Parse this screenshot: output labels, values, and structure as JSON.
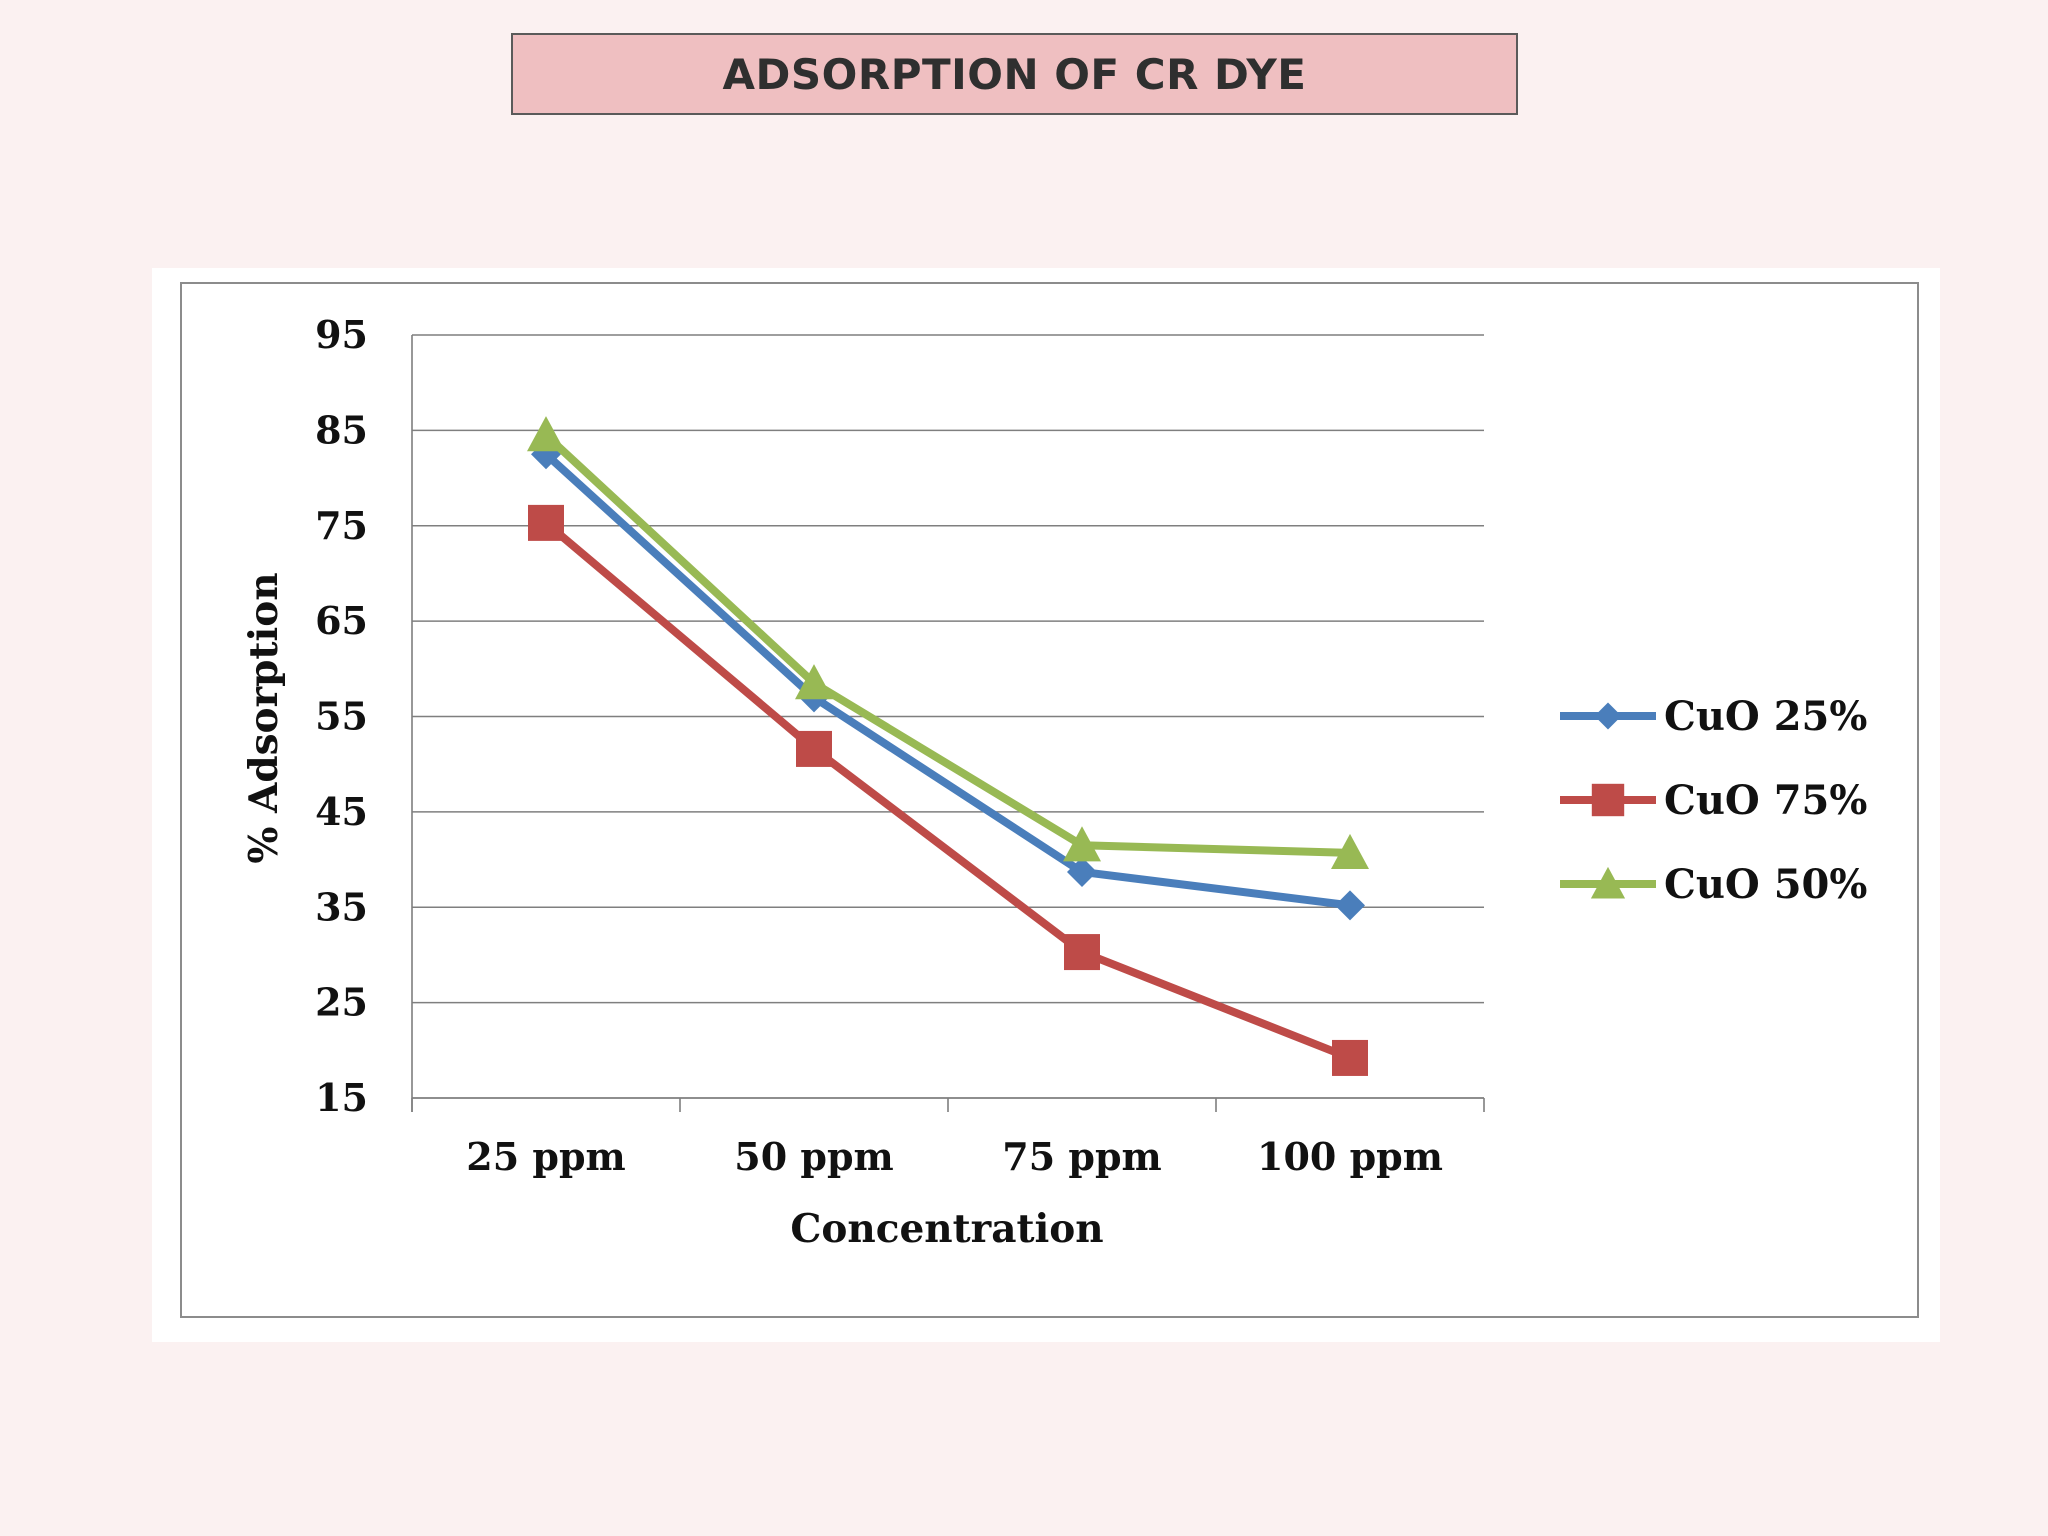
{
  "slide": {
    "title": "ADSORPTION OF CR DYE"
  },
  "chart_data": {
    "type": "line",
    "categories": [
      "25 ppm",
      "50 ppm",
      "75 ppm",
      "100 ppm"
    ],
    "xlabel": "Concentration",
    "ylabel": "% Adsorption",
    "ylim": [
      15,
      95
    ],
    "yticks": [
      15,
      25,
      35,
      45,
      55,
      65,
      75,
      85,
      95
    ],
    "grid": true,
    "legend_position": "right",
    "series": [
      {
        "name": "CuO 25%",
        "values": [
          82.5,
          57,
          38.7,
          35.2
        ],
        "color": "#4a7ebb",
        "marker": "diamond"
      },
      {
        "name": "CuO 75%",
        "values": [
          75.3,
          51.6,
          30.3,
          19.2
        ],
        "color": "#be4b48",
        "marker": "square"
      },
      {
        "name": "CuO 50%",
        "values": [
          84.5,
          58.5,
          41.5,
          40.7
        ],
        "color": "#98b954",
        "marker": "triangle"
      }
    ]
  }
}
